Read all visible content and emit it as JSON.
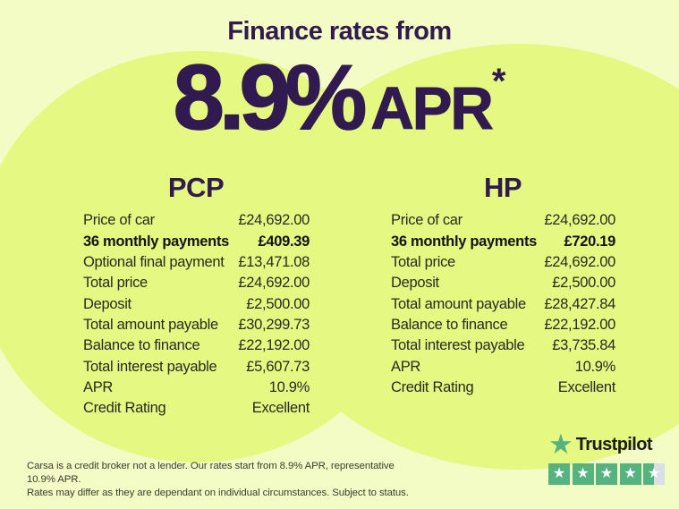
{
  "header": {
    "title": "Finance rates from",
    "rate": "8.9%",
    "rate_suffix": "APR",
    "asterisk": "*"
  },
  "tables": [
    {
      "title": "PCP",
      "rows": [
        {
          "label": "Price of car",
          "value": "£24,692.00"
        },
        {
          "label": "36 monthly payments",
          "value": "£409.39",
          "bold": true
        },
        {
          "label": "Optional final payment",
          "value": "£13,471.08"
        },
        {
          "label": "Total price",
          "value": "£24,692.00"
        },
        {
          "label": "Deposit",
          "value": "£2,500.00"
        },
        {
          "label": "Total amount payable",
          "value": "£30,299.73"
        },
        {
          "label": "Balance to finance",
          "value": "£22,192.00"
        },
        {
          "label": "Total interest payable",
          "value": "£5,607.73"
        },
        {
          "label": "APR",
          "value": "10.9%"
        },
        {
          "label": "Credit Rating",
          "value": "Excellent"
        }
      ]
    },
    {
      "title": "HP",
      "rows": [
        {
          "label": "Price of car",
          "value": "£24,692.00"
        },
        {
          "label": "36 monthly payments",
          "value": "£720.19",
          "bold": true
        },
        {
          "label": "Total price",
          "value": "£24,692.00"
        },
        {
          "label": "Deposit",
          "value": "£2,500.00"
        },
        {
          "label": "Total amount payable",
          "value": "£28,427.84"
        },
        {
          "label": "Balance to finance",
          "value": "£22,192.00"
        },
        {
          "label": "Total interest payable",
          "value": "£3,735.84"
        },
        {
          "label": "APR",
          "value": "10.9%"
        },
        {
          "label": "Credit Rating",
          "value": "Excellent"
        }
      ]
    }
  ],
  "footer": {
    "disclaimer_line1": "Carsa is a credit broker not a lender. Our rates start from 8.9% APR, representative 10.9% APR.",
    "disclaimer_line2": "Rates may differ as they are dependant on individual circumstances. Subject to status.",
    "trustpilot": {
      "brand": "Trustpilot",
      "rating": 4.5,
      "star_icon": "★"
    }
  },
  "colors": {
    "background": "#f2fcc4",
    "ellipse": "#e5f882",
    "heading_purple": "#311a4f",
    "body_text": "#2a2a22",
    "trustpilot_green": "#54b37e",
    "trustpilot_empty_gray": "#dcdee5"
  }
}
